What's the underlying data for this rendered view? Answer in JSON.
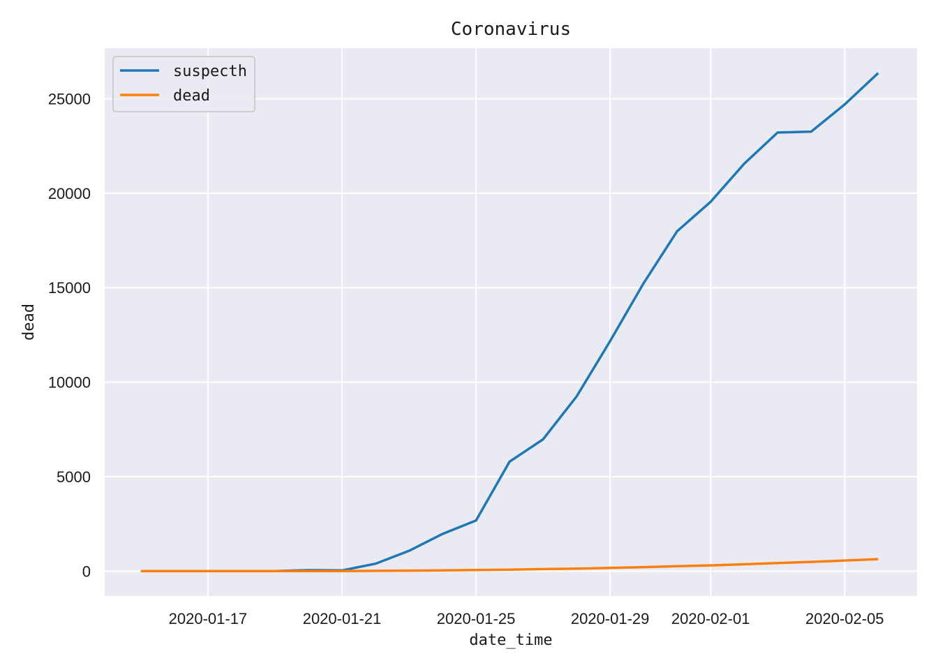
{
  "chart_data": {
    "type": "line",
    "title": "Coronavirus",
    "xlabel": "date_time",
    "ylabel": "dead",
    "x": [
      "2020-01-15",
      "2020-01-16",
      "2020-01-17",
      "2020-01-18",
      "2020-01-19",
      "2020-01-20",
      "2020-01-21",
      "2020-01-22",
      "2020-01-23",
      "2020-01-24",
      "2020-01-25",
      "2020-01-26",
      "2020-01-27",
      "2020-01-28",
      "2020-01-29",
      "2020-01-30",
      "2020-01-31",
      "2020-02-01",
      "2020-02-02",
      "2020-02-03",
      "2020-02-04",
      "2020-02-05",
      "2020-02-06"
    ],
    "series": [
      {
        "name": "suspecth",
        "color": "#1f77b4",
        "values": [
          0,
          0,
          0,
          0,
          0,
          54,
          37,
          393,
          1072,
          1965,
          2684,
          5794,
          6973,
          9239,
          12167,
          15238,
          17988,
          19544,
          21558,
          23214,
          23260,
          24702,
          26359
        ]
      },
      {
        "name": "dead",
        "color": "#ff7f0e",
        "values": [
          0,
          0,
          0,
          0,
          0,
          0,
          6,
          17,
          25,
          41,
          56,
          80,
          106,
          132,
          170,
          213,
          259,
          304,
          361,
          425,
          490,
          563,
          636
        ]
      }
    ],
    "xticks": [
      "2020-01-17",
      "2020-01-21",
      "2020-01-25",
      "2020-01-29",
      "2020-02-01",
      "2020-02-05"
    ],
    "yticks": [
      0,
      5000,
      10000,
      15000,
      20000,
      25000
    ],
    "xlim": [
      "2020-01-13.92",
      "2020-02-07.16"
    ],
    "ylim": [
      -1318,
      27678
    ],
    "grid": true,
    "legend": "top-left",
    "background_color": "#eaeaf2",
    "grid_color": "#ffffff"
  }
}
